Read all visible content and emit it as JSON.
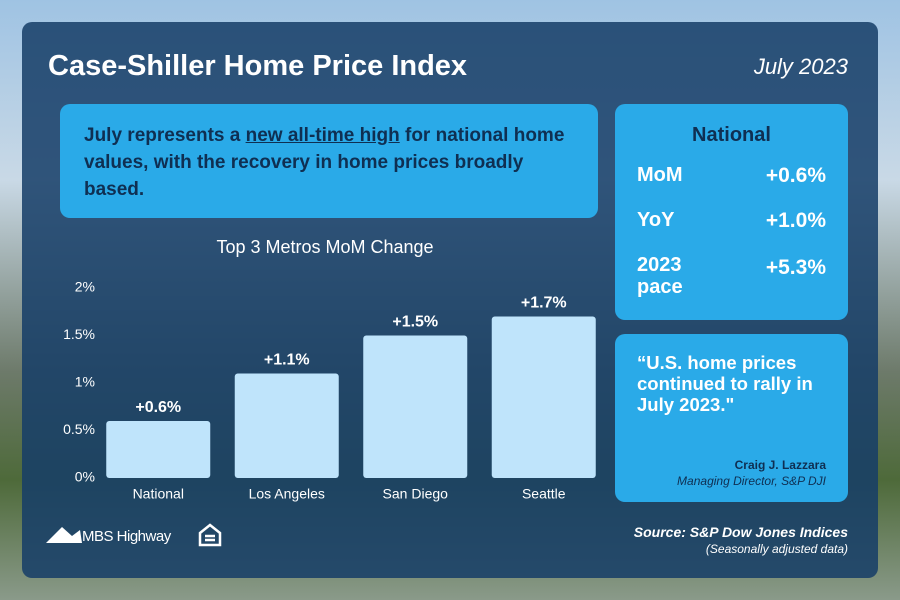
{
  "header": {
    "title": "Case-Shiller Home Price Index",
    "date": "July 2023"
  },
  "callout": {
    "before": "July represents a ",
    "highlight": "new all-time high",
    "after": " for national home values, with the recovery in home prices broadly based."
  },
  "national": {
    "title": "National",
    "rows": [
      {
        "label": "MoM",
        "value": "+0.6%"
      },
      {
        "label": "YoY",
        "value": "+1.0%"
      },
      {
        "label": "2023 pace",
        "value": "+5.3%"
      }
    ]
  },
  "quote": {
    "text": "“U.S. home prices continued to rally in July 2023.\"",
    "author": "Craig J. Lazzara",
    "role": "Managing Director, S&P DJI"
  },
  "footer": {
    "brand": "MBS Highway",
    "source": "Source: S&P Dow Jones Indices",
    "note": "(Seasonally adjusted data)"
  },
  "chart_data": {
    "type": "bar",
    "title": "Top 3 Metros MoM Change",
    "categories": [
      "National",
      "Los Angeles",
      "San Diego",
      "Seattle"
    ],
    "values": [
      0.6,
      1.1,
      1.5,
      1.7
    ],
    "value_labels": [
      "+0.6%",
      "+1.1%",
      "+1.5%",
      "+1.7%"
    ],
    "color": "#bfe4fb",
    "ylim": [
      0,
      2
    ],
    "yticks": [
      {
        "value": 0,
        "label": "0%"
      },
      {
        "value": 0.5,
        "label": "0.5%"
      },
      {
        "value": 1,
        "label": "1%"
      },
      {
        "value": 1.5,
        "label": "1.5%"
      },
      {
        "value": 2,
        "label": "2%"
      }
    ]
  }
}
